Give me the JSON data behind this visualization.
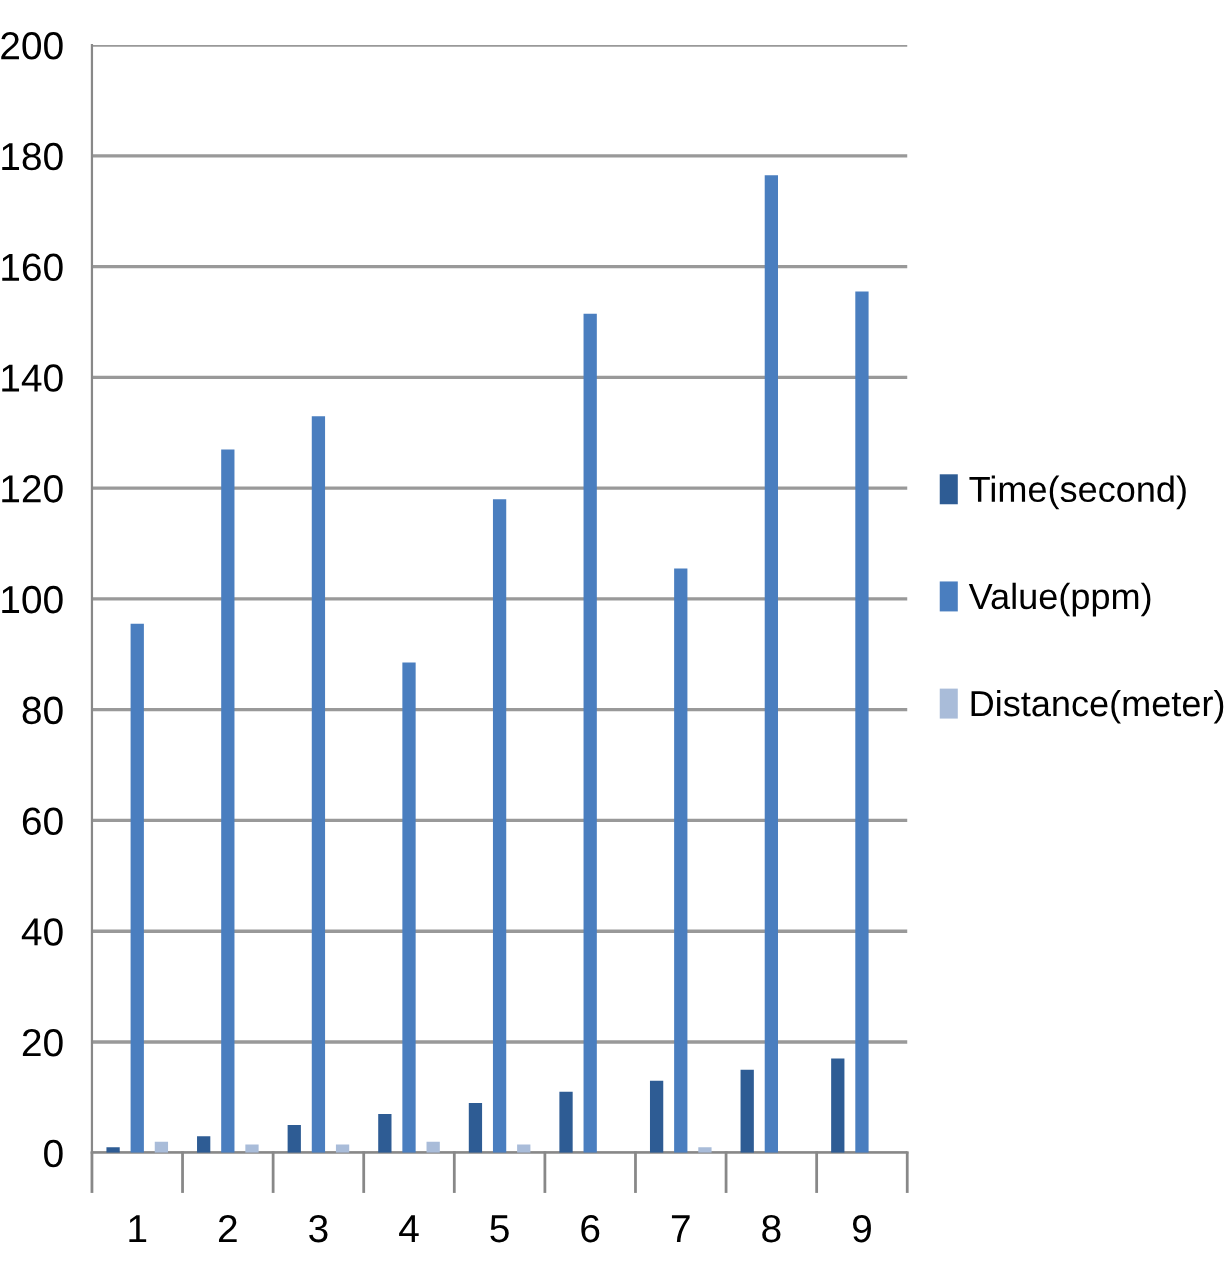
{
  "chart_data": {
    "type": "bar",
    "categories": [
      "1",
      "2",
      "3",
      "4",
      "5",
      "6",
      "7",
      "8",
      "9"
    ],
    "series": [
      {
        "name": "Time(second)",
        "color": "#2e5c94",
        "values": [
          1,
          3,
          5,
          7,
          9,
          11,
          13,
          15,
          17
        ]
      },
      {
        "name": "Value(ppm)",
        "color": "#4a7ebf",
        "values": [
          95.5,
          127,
          133,
          88.5,
          118,
          151.5,
          105.5,
          176.5,
          155.5
        ]
      },
      {
        "name": "Distance(meter)",
        "color": "#a9bcd9",
        "values": [
          2,
          1.5,
          1.5,
          2,
          1.5,
          null,
          1,
          null,
          null
        ]
      }
    ],
    "ylim": [
      0,
      200
    ],
    "yticks": [
      0,
      20,
      40,
      60,
      80,
      100,
      120,
      140,
      160,
      180,
      200
    ],
    "grid": "y",
    "legend": "right"
  }
}
